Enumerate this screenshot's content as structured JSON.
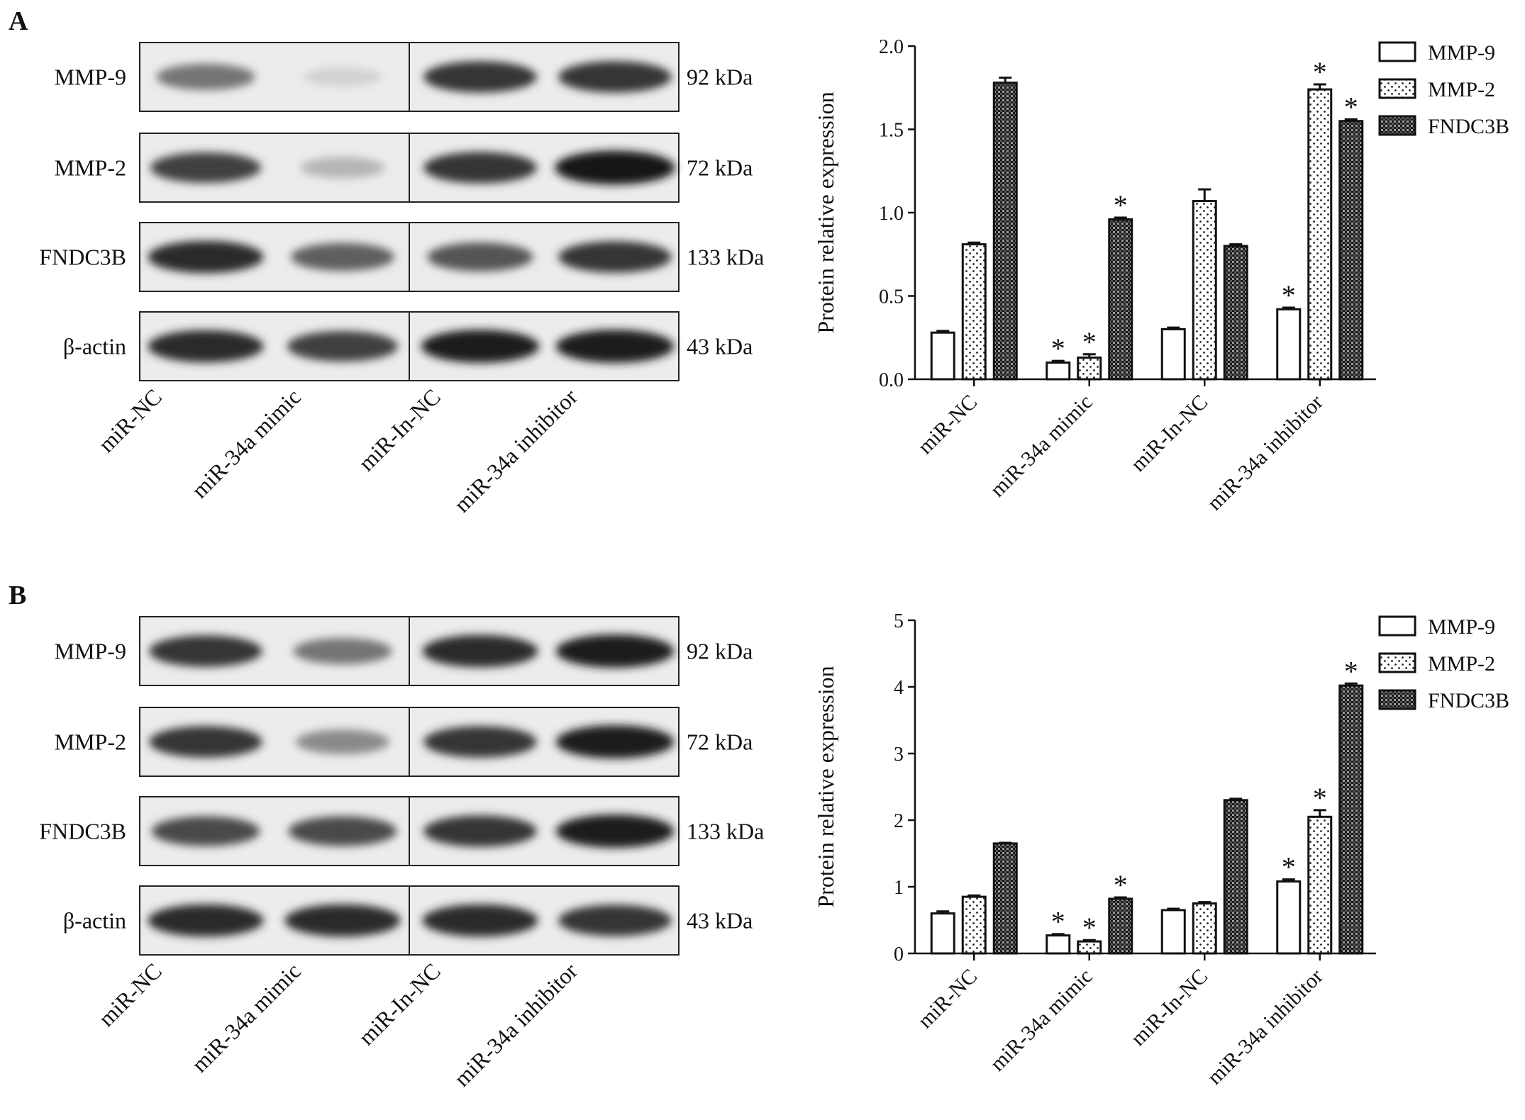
{
  "panels": [
    {
      "letter": "A",
      "blot": {
        "proteins": [
          "MMP-9",
          "MMP-2",
          "FNDC3B",
          "β-actin"
        ],
        "sizes": [
          "92 kDa",
          "72 kDa",
          "133 kDa",
          "43 kDa"
        ],
        "lanes": [
          "miR-NC",
          "miR-34a mimic",
          "miR-In-NC",
          "miR-34a inhibitor"
        ],
        "intensities": [
          [
            0.55,
            0.12,
            0.85,
            0.85
          ],
          [
            0.8,
            0.25,
            0.85,
            1.0
          ],
          [
            0.9,
            0.65,
            0.7,
            0.85
          ],
          [
            0.9,
            0.8,
            0.95,
            0.95
          ]
        ]
      },
      "chart_data": {
        "type": "bar",
        "ylabel": "Protein relative expression",
        "ylim": [
          0,
          2.0
        ],
        "yticks": [
          "0.0",
          "0.5",
          "1.0",
          "1.5",
          "2.0"
        ],
        "categories": [
          "miR-NC",
          "miR-34a mimic",
          "miR-In-NC",
          "miR-34a inhibitor"
        ],
        "legend_position": "right",
        "series": [
          {
            "name": "MMP-9",
            "pattern": "white",
            "values": [
              0.28,
              0.1,
              0.3,
              0.42
            ],
            "errors": [
              0.01,
              0.01,
              0.01,
              0.01
            ],
            "significant": [
              false,
              true,
              false,
              true
            ]
          },
          {
            "name": "MMP-2",
            "pattern": "dots",
            "values": [
              0.81,
              0.13,
              1.07,
              1.74
            ],
            "errors": [
              0.01,
              0.02,
              0.07,
              0.03
            ],
            "significant": [
              false,
              true,
              false,
              true
            ]
          },
          {
            "name": "FNDC3B",
            "pattern": "checker",
            "values": [
              1.78,
              0.96,
              0.8,
              1.55
            ],
            "errors": [
              0.03,
              0.01,
              0.01,
              0.01
            ],
            "significant": [
              false,
              true,
              false,
              true
            ]
          }
        ],
        "significance_marker": "*"
      }
    },
    {
      "letter": "B",
      "blot": {
        "proteins": [
          "MMP-9",
          "MMP-2",
          "FNDC3B",
          "β-actin"
        ],
        "sizes": [
          "92 kDa",
          "72 kDa",
          "133 kDa",
          "43 kDa"
        ],
        "lanes": [
          "miR-NC",
          "miR-34a mimic",
          "miR-In-NC",
          "miR-34a inhibitor"
        ],
        "intensities": [
          [
            0.85,
            0.55,
            0.9,
            0.95
          ],
          [
            0.85,
            0.45,
            0.85,
            0.95
          ],
          [
            0.75,
            0.75,
            0.85,
            0.95
          ],
          [
            0.9,
            0.9,
            0.9,
            0.85
          ]
        ]
      },
      "chart_data": {
        "type": "bar",
        "ylabel": "Protein relative expression",
        "ylim": [
          0,
          5
        ],
        "yticks": [
          "0",
          "1",
          "2",
          "3",
          "4",
          "5"
        ],
        "categories": [
          "miR-NC",
          "miR-34a mimic",
          "miR-In-NC",
          "miR-34a inhibitor"
        ],
        "legend_position": "right",
        "series": [
          {
            "name": "MMP-9",
            "pattern": "white",
            "values": [
              0.6,
              0.27,
              0.65,
              1.08
            ],
            "errors": [
              0.03,
              0.02,
              0.02,
              0.03
            ],
            "significant": [
              false,
              true,
              false,
              true
            ]
          },
          {
            "name": "MMP-2",
            "pattern": "dots",
            "values": [
              0.85,
              0.18,
              0.75,
              2.05
            ],
            "errors": [
              0.02,
              0.02,
              0.02,
              0.1
            ],
            "significant": [
              false,
              true,
              false,
              true
            ]
          },
          {
            "name": "FNDC3B",
            "pattern": "checker",
            "values": [
              1.65,
              0.82,
              2.3,
              4.02
            ],
            "errors": [
              0.01,
              0.02,
              0.02,
              0.03
            ],
            "significant": [
              false,
              true,
              false,
              true
            ]
          }
        ],
        "significance_marker": "*"
      }
    }
  ]
}
